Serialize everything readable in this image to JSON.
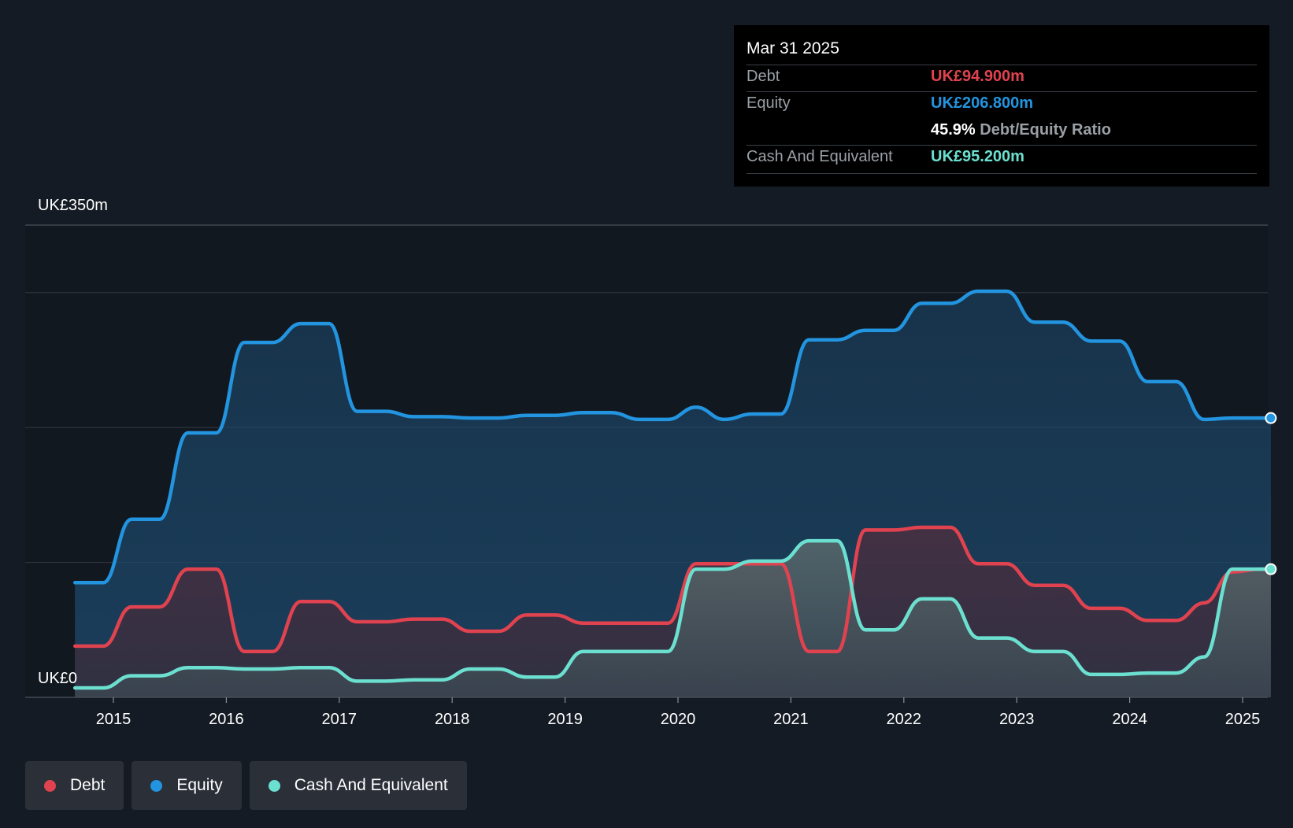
{
  "tooltip": {
    "date": "Mar 31 2025",
    "debt_label": "Debt",
    "debt_value": "UK£94.900m",
    "equity_label": "Equity",
    "equity_value": "UK£206.800m",
    "ratio_value": "45.9%",
    "ratio_label": "Debt/Equity Ratio",
    "cash_label": "Cash And Equivalent",
    "cash_value": "UK£95.200m"
  },
  "legend": {
    "debt": "Debt",
    "equity": "Equity",
    "cash": "Cash And Equivalent"
  },
  "colors": {
    "debt": "#e0434f",
    "equity": "#2394df",
    "cash": "#6ce0d0",
    "background": "#151b24"
  },
  "chart_data": {
    "type": "area",
    "ylim": [
      0,
      350
    ],
    "y_tick_labels": [
      "UK£0",
      "UK£350m"
    ],
    "x_tick_labels": [
      "2015",
      "2016",
      "2017",
      "2018",
      "2019",
      "2020",
      "2021",
      "2022",
      "2023",
      "2024",
      "2025"
    ],
    "x_range": [
      2014.66,
      2025.25
    ],
    "grid": true,
    "series": [
      {
        "name": "Equity",
        "x": [
          2014.66,
          2014.91,
          2015.16,
          2015.41,
          2015.66,
          2015.91,
          2016.16,
          2016.41,
          2016.66,
          2016.91,
          2017.16,
          2017.41,
          2017.66,
          2017.91,
          2018.16,
          2018.41,
          2018.66,
          2018.91,
          2019.16,
          2019.41,
          2019.66,
          2019.91,
          2020.16,
          2020.41,
          2020.66,
          2020.91,
          2021.16,
          2021.41,
          2021.66,
          2021.91,
          2022.16,
          2022.41,
          2022.66,
          2022.91,
          2023.16,
          2023.41,
          2023.66,
          2023.91,
          2024.16,
          2024.41,
          2024.66,
          2024.91,
          2025.16,
          2025.25
        ],
        "values": [
          85,
          85,
          132,
          132,
          196,
          196,
          263,
          263,
          277,
          277,
          212,
          212,
          208,
          208,
          207,
          207,
          209,
          209,
          211,
          211,
          206,
          206,
          215,
          206,
          210,
          210,
          265,
          265,
          272,
          272,
          292,
          292,
          301,
          301,
          278,
          278,
          264,
          264,
          234,
          234,
          206,
          207,
          207,
          207
        ]
      },
      {
        "name": "Debt",
        "x": [
          2014.66,
          2014.91,
          2015.16,
          2015.41,
          2015.66,
          2015.91,
          2016.16,
          2016.41,
          2016.66,
          2016.91,
          2017.16,
          2017.41,
          2017.66,
          2017.91,
          2018.16,
          2018.41,
          2018.66,
          2018.91,
          2019.16,
          2019.41,
          2019.66,
          2019.91,
          2020.16,
          2020.41,
          2020.66,
          2020.91,
          2021.16,
          2021.41,
          2021.66,
          2021.91,
          2022.16,
          2022.41,
          2022.66,
          2022.91,
          2023.16,
          2023.41,
          2023.66,
          2023.91,
          2024.16,
          2024.41,
          2024.66,
          2024.91,
          2025.16,
          2025.25
        ],
        "values": [
          38,
          38,
          67,
          67,
          95,
          95,
          34,
          34,
          71,
          71,
          56,
          56,
          58,
          58,
          49,
          49,
          61,
          61,
          55,
          55,
          55,
          55,
          99,
          99,
          99,
          99,
          34,
          34,
          124,
          124,
          126,
          126,
          99,
          99,
          83,
          83,
          66,
          66,
          57,
          57,
          70,
          93,
          95,
          95
        ]
      },
      {
        "name": "Cash And Equivalent",
        "x": [
          2014.66,
          2014.91,
          2015.16,
          2015.41,
          2015.66,
          2015.91,
          2016.16,
          2016.41,
          2016.66,
          2016.91,
          2017.16,
          2017.41,
          2017.66,
          2017.91,
          2018.16,
          2018.41,
          2018.66,
          2018.91,
          2019.16,
          2019.41,
          2019.66,
          2019.91,
          2020.16,
          2020.41,
          2020.66,
          2020.91,
          2021.16,
          2021.41,
          2021.66,
          2021.91,
          2022.16,
          2022.41,
          2022.66,
          2022.91,
          2023.16,
          2023.41,
          2023.66,
          2023.91,
          2024.16,
          2024.41,
          2024.66,
          2024.91,
          2025.16,
          2025.25
        ],
        "values": [
          7,
          7,
          16,
          16,
          22,
          22,
          21,
          21,
          22,
          22,
          12,
          12,
          13,
          13,
          21,
          21,
          15,
          15,
          34,
          34,
          34,
          34,
          95,
          95,
          101,
          101,
          116,
          116,
          50,
          50,
          73,
          73,
          44,
          44,
          34,
          34,
          17,
          17,
          18,
          18,
          30,
          95,
          95,
          95
        ]
      }
    ]
  }
}
